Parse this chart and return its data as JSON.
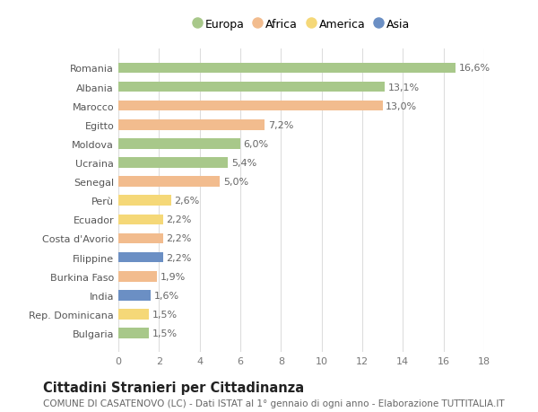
{
  "countries": [
    "Romania",
    "Albania",
    "Marocco",
    "Egitto",
    "Moldova",
    "Ucraina",
    "Senegal",
    "Perù",
    "Ecuador",
    "Costa d'Avorio",
    "Filippine",
    "Burkina Faso",
    "India",
    "Rep. Dominicana",
    "Bulgaria"
  ],
  "values": [
    16.6,
    13.1,
    13.0,
    7.2,
    6.0,
    5.4,
    5.0,
    2.6,
    2.2,
    2.2,
    2.2,
    1.9,
    1.6,
    1.5,
    1.5
  ],
  "labels": [
    "16,6%",
    "13,1%",
    "13,0%",
    "7,2%",
    "6,0%",
    "5,4%",
    "5,0%",
    "2,6%",
    "2,2%",
    "2,2%",
    "2,2%",
    "1,9%",
    "1,6%",
    "1,5%",
    "1,5%"
  ],
  "continents": [
    "Europa",
    "Europa",
    "Africa",
    "Africa",
    "Europa",
    "Europa",
    "Africa",
    "America",
    "America",
    "Africa",
    "Asia",
    "Africa",
    "Asia",
    "America",
    "Europa"
  ],
  "colors": {
    "Europa": "#a8c88a",
    "Africa": "#f2bc8e",
    "America": "#f5d878",
    "Asia": "#6b8fc4"
  },
  "legend_order": [
    "Europa",
    "Africa",
    "America",
    "Asia"
  ],
  "title": "Cittadini Stranieri per Cittadinanza",
  "subtitle": "COMUNE DI CASATENOVO (LC) - Dati ISTAT al 1° gennaio di ogni anno - Elaborazione TUTTITALIA.IT",
  "xlim": [
    0,
    18
  ],
  "xticks": [
    0,
    2,
    4,
    6,
    8,
    10,
    12,
    14,
    16,
    18
  ],
  "bar_height": 0.55,
  "bg_color": "#ffffff",
  "grid_color": "#dddddd",
  "label_fontsize": 8,
  "tick_fontsize": 8,
  "title_fontsize": 10.5,
  "subtitle_fontsize": 7.5
}
